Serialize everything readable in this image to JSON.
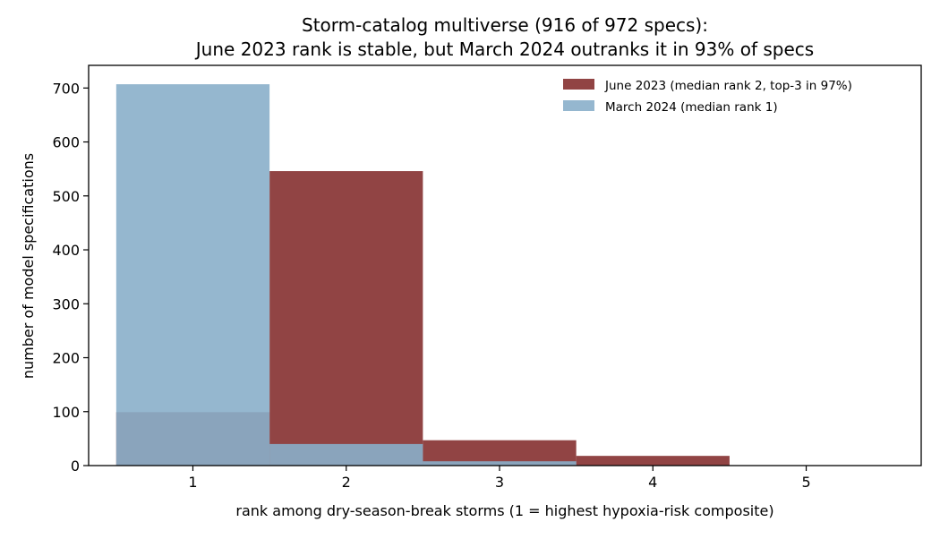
{
  "chart_data": {
    "type": "bar",
    "title_lines": [
      "Storm-catalog multiverse (916 of 972 specs):",
      "June 2023 rank is stable, but March 2024 outranks it in 93% of specs"
    ],
    "xlabel": "rank among dry-season-break storms (1 = highest hypoxia-risk composite)",
    "ylabel": "number of model specifications",
    "categories": [
      "1",
      "2",
      "3",
      "4",
      "5"
    ],
    "xlim": [
      0.32,
      5.75
    ],
    "ylim": [
      0,
      742
    ],
    "yticks": [
      0,
      100,
      200,
      300,
      400,
      500,
      600,
      700
    ],
    "series": [
      {
        "name": "June 2023 (median rank 2, top-3 in 97%)",
        "color": "#8b3a3a",
        "values": [
          99,
          546,
          47,
          18,
          0
        ]
      },
      {
        "name": "March 2024 (median rank 1)",
        "color": "#8aafca",
        "values": [
          707,
          40,
          8,
          0,
          0
        ]
      }
    ],
    "legend_position": "upper-right",
    "grid": false
  }
}
